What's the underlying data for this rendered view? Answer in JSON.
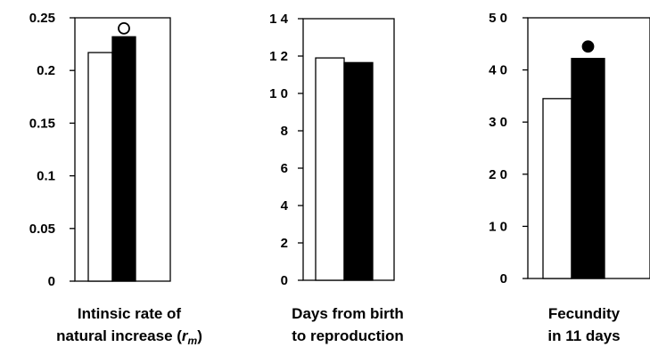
{
  "chart_data": [
    {
      "type": "bar",
      "title": "",
      "xlabel_lines": [
        "Intinsic rate of",
        "natural increase (r"
      ],
      "xlabel_sub": "m",
      "xlabel_close": ")",
      "ylabel": "",
      "ylim": [
        0,
        0.25
      ],
      "yticks": [
        0,
        0.05,
        0.1,
        0.15,
        0.2,
        0.25
      ],
      "ytick_labels": [
        "0",
        "0.05",
        "0.1",
        "0.15",
        "0.2",
        "0.25"
      ],
      "categories": [
        ""
      ],
      "series": [
        {
          "fill": "#ffffff",
          "values": [
            0.217
          ]
        },
        {
          "fill": "#000000",
          "values": [
            0.232
          ]
        }
      ],
      "marker": {
        "shape": "open-circle",
        "value": 0.24,
        "over_series": 1
      }
    },
    {
      "type": "bar",
      "title": "",
      "xlabel_lines": [
        "Days from birth",
        "to reproduction"
      ],
      "ylabel": "",
      "ylim": [
        0,
        14
      ],
      "yticks": [
        0,
        2,
        4,
        6,
        8,
        10,
        12,
        14
      ],
      "ytick_labels": [
        "0",
        "2",
        "4",
        "6",
        "8",
        "1 0",
        "1 2",
        "1 4"
      ],
      "categories": [
        ""
      ],
      "series": [
        {
          "fill": "#ffffff",
          "values": [
            11.9
          ]
        },
        {
          "fill": "#000000",
          "values": [
            11.65
          ]
        }
      ]
    },
    {
      "type": "bar",
      "title": "",
      "xlabel_lines": [
        "Fecundity",
        "in 11 days"
      ],
      "ylabel": "",
      "ylim": [
        0,
        50
      ],
      "yticks": [
        0,
        10,
        20,
        30,
        40,
        50
      ],
      "ytick_labels": [
        "0",
        "1 0",
        "2 0",
        "3 0",
        "4 0",
        "5 0"
      ],
      "categories": [
        ""
      ],
      "series": [
        {
          "fill": "#ffffff",
          "values": [
            34.5
          ]
        },
        {
          "fill": "#000000",
          "values": [
            42.2
          ]
        }
      ],
      "marker": {
        "shape": "filled-circle",
        "value": 44.5,
        "over_series": 1
      }
    }
  ]
}
